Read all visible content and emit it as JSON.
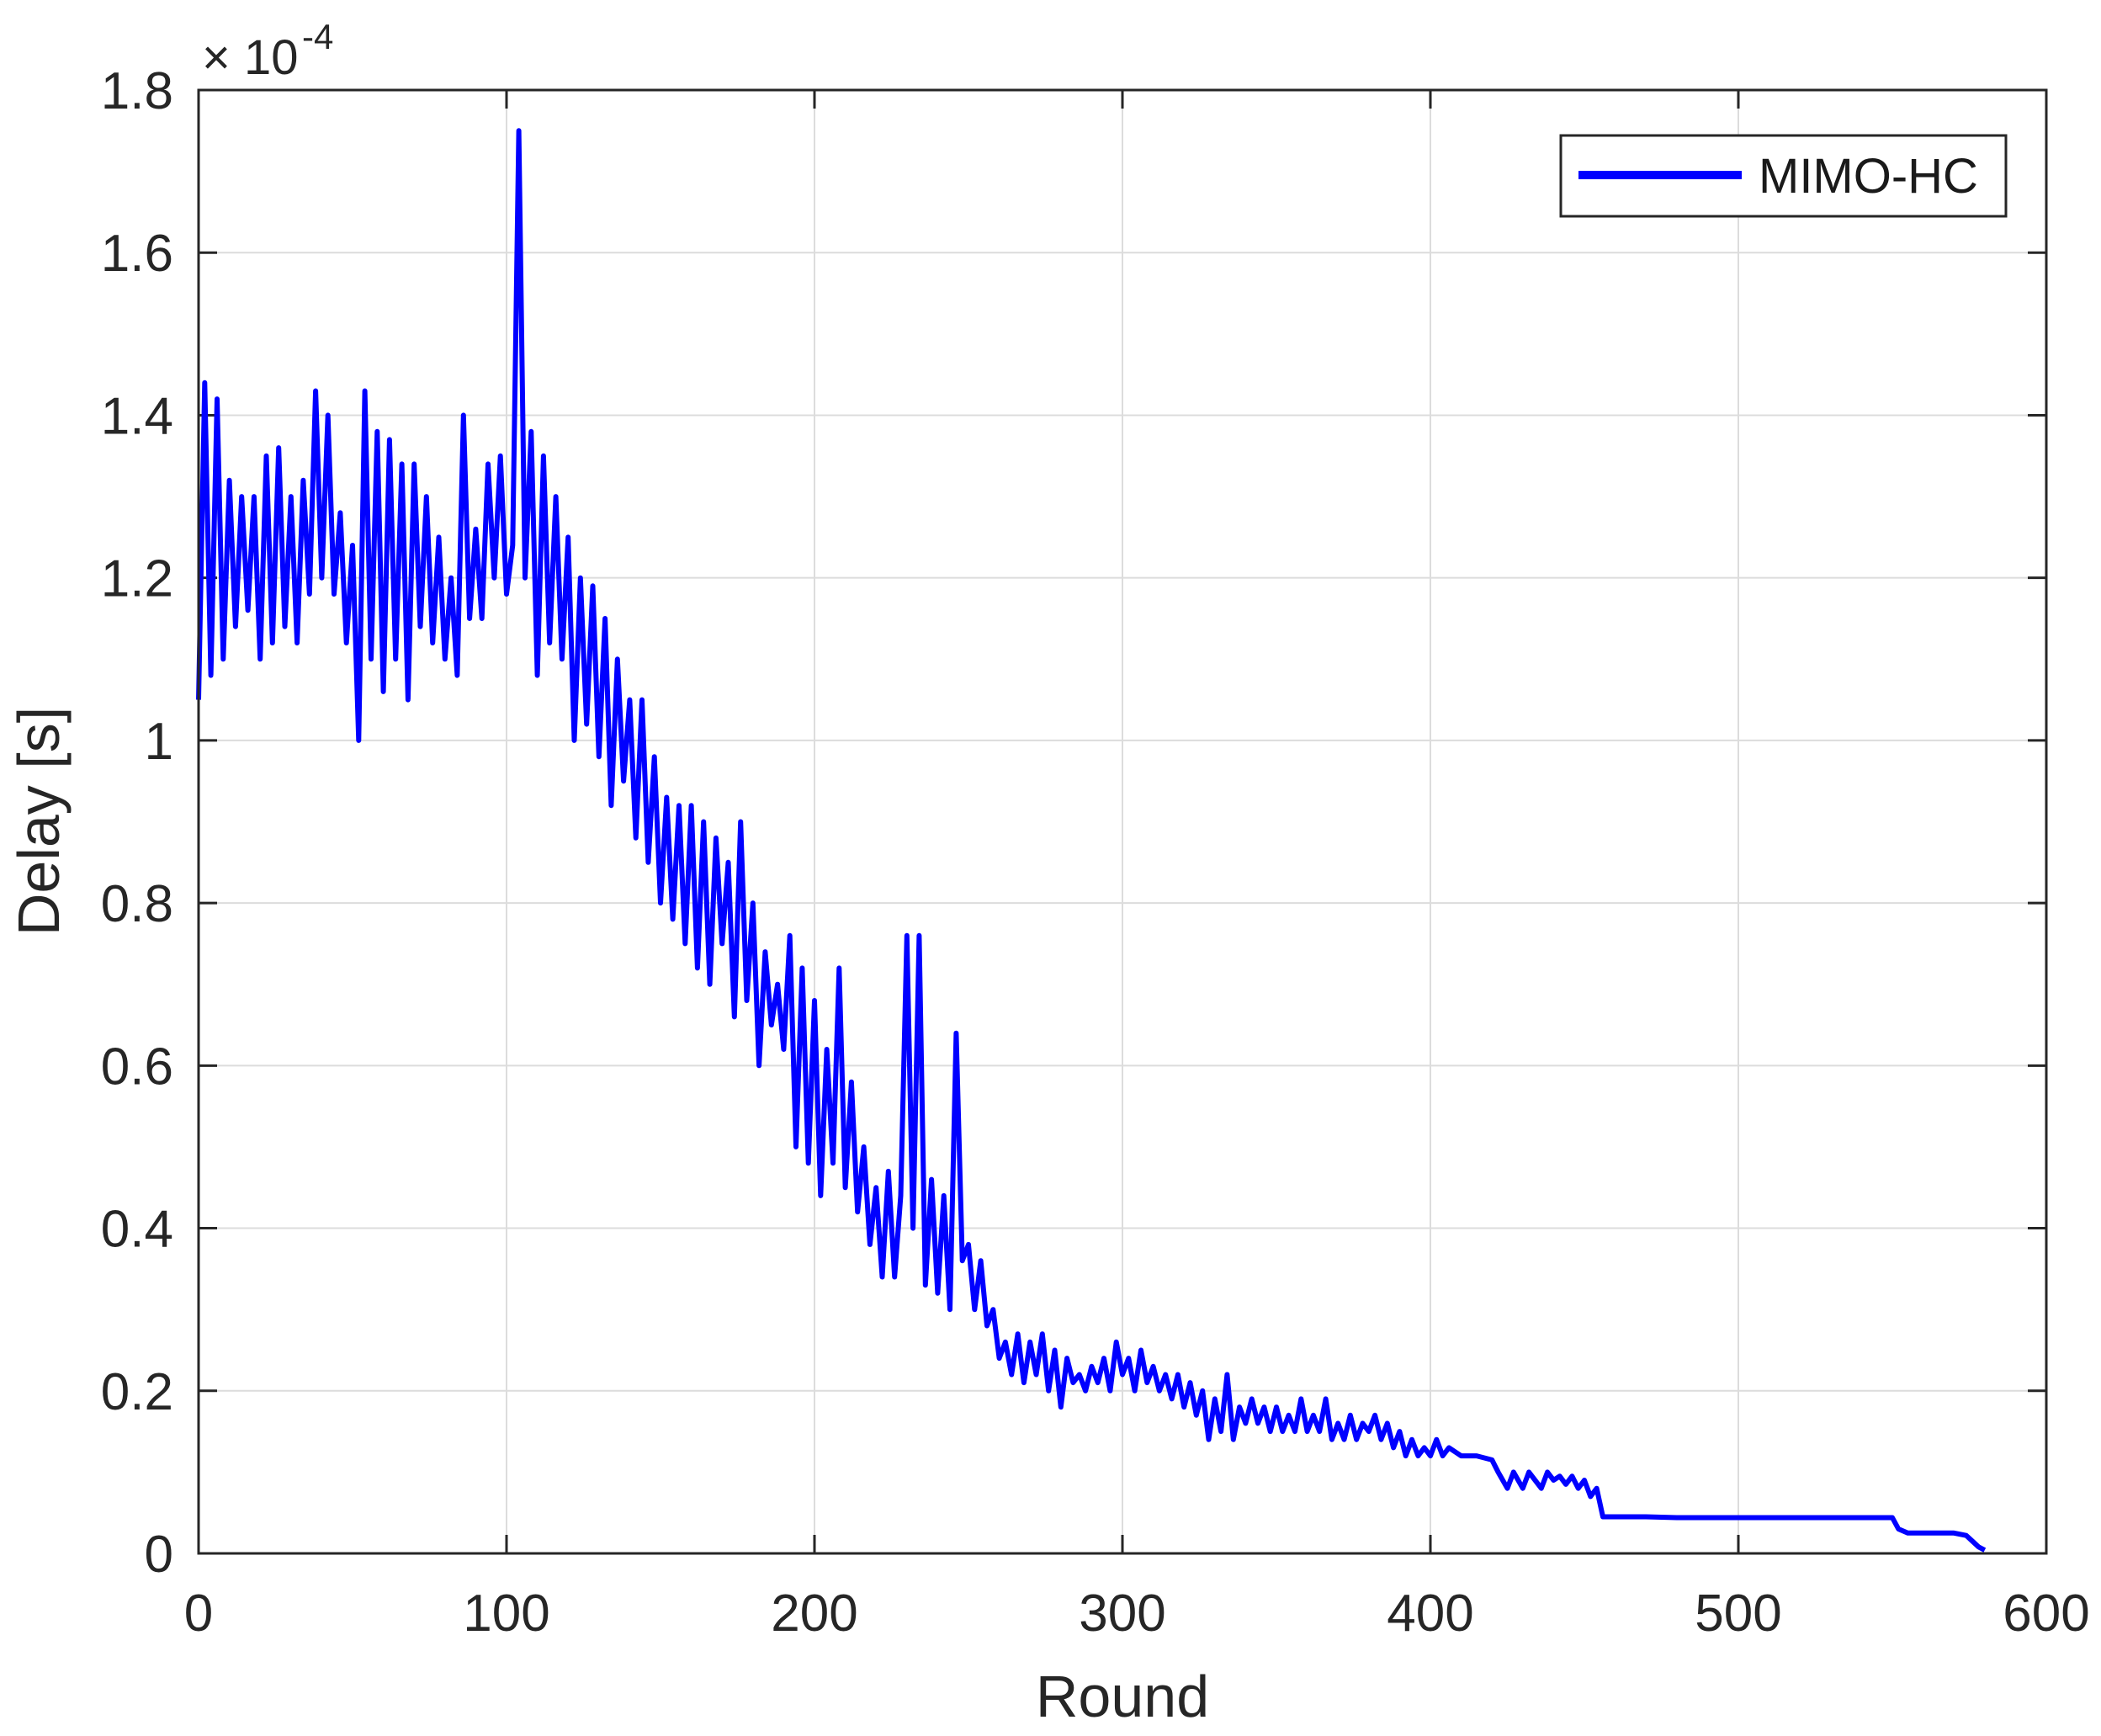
{
  "chart_data": {
    "type": "line",
    "title": "",
    "xlabel": "Round",
    "ylabel": "Delay [s]",
    "y_scale_multiplier": "× 10",
    "y_scale_exponent": "-4",
    "xlim": [
      0,
      600
    ],
    "ylim": [
      0,
      1.8
    ],
    "x_ticks": [
      "0",
      "100",
      "200",
      "300",
      "400",
      "500",
      "600"
    ],
    "y_ticks": [
      "0",
      "0.2",
      "0.4",
      "0.6",
      "0.8",
      "1",
      "1.2",
      "1.4",
      "1.6",
      "1.8"
    ],
    "grid": true,
    "legend_position": "top-right",
    "series": [
      {
        "name": "MIMO-HC",
        "color": "#0000ff",
        "points": [
          [
            0,
            1.05
          ],
          [
            2,
            1.44
          ],
          [
            4,
            1.08
          ],
          [
            6,
            1.42
          ],
          [
            8,
            1.1
          ],
          [
            10,
            1.32
          ],
          [
            12,
            1.14
          ],
          [
            14,
            1.3
          ],
          [
            16,
            1.16
          ],
          [
            18,
            1.3
          ],
          [
            20,
            1.1
          ],
          [
            22,
            1.35
          ],
          [
            24,
            1.12
          ],
          [
            26,
            1.36
          ],
          [
            28,
            1.14
          ],
          [
            30,
            1.3
          ],
          [
            32,
            1.12
          ],
          [
            34,
            1.32
          ],
          [
            36,
            1.18
          ],
          [
            38,
            1.43
          ],
          [
            40,
            1.2
          ],
          [
            42,
            1.4
          ],
          [
            44,
            1.18
          ],
          [
            46,
            1.28
          ],
          [
            48,
            1.12
          ],
          [
            50,
            1.24
          ],
          [
            52,
            1.0
          ],
          [
            54,
            1.43
          ],
          [
            56,
            1.1
          ],
          [
            58,
            1.38
          ],
          [
            60,
            1.06
          ],
          [
            62,
            1.37
          ],
          [
            64,
            1.1
          ],
          [
            66,
            1.34
          ],
          [
            68,
            1.05
          ],
          [
            70,
            1.34
          ],
          [
            72,
            1.14
          ],
          [
            74,
            1.3
          ],
          [
            76,
            1.12
          ],
          [
            78,
            1.25
          ],
          [
            80,
            1.1
          ],
          [
            82,
            1.2
          ],
          [
            84,
            1.08
          ],
          [
            86,
            1.4
          ],
          [
            88,
            1.15
          ],
          [
            90,
            1.26
          ],
          [
            92,
            1.15
          ],
          [
            94,
            1.34
          ],
          [
            96,
            1.2
          ],
          [
            98,
            1.35
          ],
          [
            100,
            1.18
          ],
          [
            102,
            1.24
          ],
          [
            104,
            1.75
          ],
          [
            106,
            1.2
          ],
          [
            108,
            1.38
          ],
          [
            110,
            1.08
          ],
          [
            112,
            1.35
          ],
          [
            114,
            1.12
          ],
          [
            116,
            1.3
          ],
          [
            118,
            1.1
          ],
          [
            120,
            1.25
          ],
          [
            122,
            1.0
          ],
          [
            124,
            1.2
          ],
          [
            126,
            1.02
          ],
          [
            128,
            1.19
          ],
          [
            130,
            0.98
          ],
          [
            132,
            1.15
          ],
          [
            134,
            0.92
          ],
          [
            136,
            1.1
          ],
          [
            138,
            0.95
          ],
          [
            140,
            1.05
          ],
          [
            142,
            0.88
          ],
          [
            144,
            1.05
          ],
          [
            146,
            0.85
          ],
          [
            148,
            0.98
          ],
          [
            150,
            0.8
          ],
          [
            152,
            0.93
          ],
          [
            154,
            0.78
          ],
          [
            156,
            0.92
          ],
          [
            158,
            0.75
          ],
          [
            160,
            0.92
          ],
          [
            162,
            0.72
          ],
          [
            164,
            0.9
          ],
          [
            166,
            0.7
          ],
          [
            168,
            0.88
          ],
          [
            170,
            0.75
          ],
          [
            172,
            0.85
          ],
          [
            174,
            0.66
          ],
          [
            176,
            0.9
          ],
          [
            178,
            0.68
          ],
          [
            180,
            0.8
          ],
          [
            182,
            0.6
          ],
          [
            184,
            0.74
          ],
          [
            186,
            0.65
          ],
          [
            188,
            0.7
          ],
          [
            190,
            0.62
          ],
          [
            192,
            0.76
          ],
          [
            194,
            0.5
          ],
          [
            196,
            0.72
          ],
          [
            198,
            0.48
          ],
          [
            200,
            0.68
          ],
          [
            202,
            0.44
          ],
          [
            204,
            0.62
          ],
          [
            206,
            0.48
          ],
          [
            208,
            0.72
          ],
          [
            210,
            0.45
          ],
          [
            212,
            0.58
          ],
          [
            214,
            0.42
          ],
          [
            216,
            0.5
          ],
          [
            218,
            0.38
          ],
          [
            220,
            0.45
          ],
          [
            222,
            0.34
          ],
          [
            224,
            0.47
          ],
          [
            226,
            0.34
          ],
          [
            228,
            0.44
          ],
          [
            230,
            0.76
          ],
          [
            232,
            0.4
          ],
          [
            234,
            0.76
          ],
          [
            236,
            0.33
          ],
          [
            238,
            0.46
          ],
          [
            240,
            0.32
          ],
          [
            242,
            0.44
          ],
          [
            244,
            0.3
          ],
          [
            246,
            0.64
          ],
          [
            248,
            0.36
          ],
          [
            250,
            0.38
          ],
          [
            252,
            0.3
          ],
          [
            254,
            0.36
          ],
          [
            256,
            0.28
          ],
          [
            258,
            0.3
          ],
          [
            260,
            0.24
          ],
          [
            262,
            0.26
          ],
          [
            264,
            0.22
          ],
          [
            266,
            0.27
          ],
          [
            268,
            0.21
          ],
          [
            270,
            0.26
          ],
          [
            272,
            0.22
          ],
          [
            274,
            0.27
          ],
          [
            276,
            0.2
          ],
          [
            278,
            0.25
          ],
          [
            280,
            0.18
          ],
          [
            282,
            0.24
          ],
          [
            284,
            0.21
          ],
          [
            286,
            0.22
          ],
          [
            288,
            0.2
          ],
          [
            290,
            0.23
          ],
          [
            292,
            0.21
          ],
          [
            294,
            0.24
          ],
          [
            296,
            0.2
          ],
          [
            298,
            0.26
          ],
          [
            300,
            0.22
          ],
          [
            302,
            0.24
          ],
          [
            304,
            0.2
          ],
          [
            306,
            0.25
          ],
          [
            308,
            0.21
          ],
          [
            310,
            0.23
          ],
          [
            312,
            0.2
          ],
          [
            314,
            0.22
          ],
          [
            316,
            0.19
          ],
          [
            318,
            0.22
          ],
          [
            320,
            0.18
          ],
          [
            322,
            0.21
          ],
          [
            324,
            0.17
          ],
          [
            326,
            0.2
          ],
          [
            328,
            0.14
          ],
          [
            330,
            0.19
          ],
          [
            332,
            0.15
          ],
          [
            334,
            0.22
          ],
          [
            336,
            0.14
          ],
          [
            338,
            0.18
          ],
          [
            340,
            0.16
          ],
          [
            342,
            0.19
          ],
          [
            344,
            0.16
          ],
          [
            346,
            0.18
          ],
          [
            348,
            0.15
          ],
          [
            350,
            0.18
          ],
          [
            352,
            0.15
          ],
          [
            354,
            0.17
          ],
          [
            356,
            0.15
          ],
          [
            358,
            0.19
          ],
          [
            360,
            0.15
          ],
          [
            362,
            0.17
          ],
          [
            364,
            0.15
          ],
          [
            366,
            0.19
          ],
          [
            368,
            0.14
          ],
          [
            370,
            0.16
          ],
          [
            372,
            0.14
          ],
          [
            374,
            0.17
          ],
          [
            376,
            0.14
          ],
          [
            378,
            0.16
          ],
          [
            380,
            0.15
          ],
          [
            382,
            0.17
          ],
          [
            384,
            0.14
          ],
          [
            386,
            0.16
          ],
          [
            388,
            0.13
          ],
          [
            390,
            0.15
          ],
          [
            392,
            0.12
          ],
          [
            394,
            0.14
          ],
          [
            396,
            0.12
          ],
          [
            398,
            0.13
          ],
          [
            400,
            0.12
          ],
          [
            402,
            0.14
          ],
          [
            404,
            0.12
          ],
          [
            406,
            0.13
          ],
          [
            410,
            0.12
          ],
          [
            415,
            0.12
          ],
          [
            420,
            0.115
          ],
          [
            422,
            0.1
          ],
          [
            425,
            0.08
          ],
          [
            427,
            0.1
          ],
          [
            430,
            0.08
          ],
          [
            432,
            0.1
          ],
          [
            434,
            0.09
          ],
          [
            436,
            0.08
          ],
          [
            438,
            0.1
          ],
          [
            440,
            0.09
          ],
          [
            442,
            0.095
          ],
          [
            444,
            0.085
          ],
          [
            446,
            0.095
          ],
          [
            448,
            0.08
          ],
          [
            450,
            0.09
          ],
          [
            452,
            0.07
          ],
          [
            454,
            0.08
          ],
          [
            456,
            0.045
          ],
          [
            460,
            0.045
          ],
          [
            470,
            0.045
          ],
          [
            480,
            0.044
          ],
          [
            490,
            0.044
          ],
          [
            500,
            0.044
          ],
          [
            510,
            0.044
          ],
          [
            520,
            0.044
          ],
          [
            530,
            0.044
          ],
          [
            540,
            0.044
          ],
          [
            550,
            0.044
          ],
          [
            552,
            0.03
          ],
          [
            555,
            0.025
          ],
          [
            560,
            0.025
          ],
          [
            565,
            0.025
          ],
          [
            570,
            0.025
          ],
          [
            574,
            0.022
          ],
          [
            576,
            0.015
          ],
          [
            578,
            0.008
          ],
          [
            580,
            0.004
          ]
        ]
      }
    ]
  }
}
